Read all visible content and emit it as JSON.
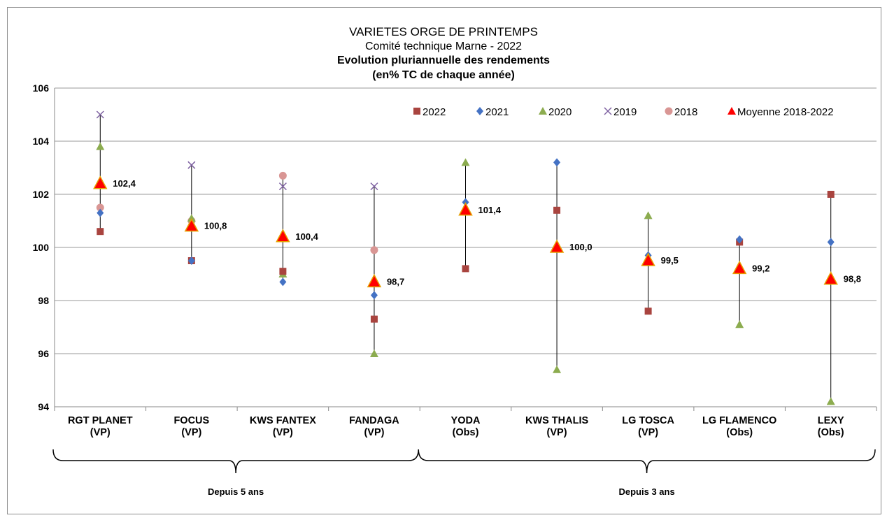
{
  "chart_data": {
    "type": "scatter",
    "title": "VARIETES ORGE DE PRINTEMPS",
    "subtitle": "Comité technique Marne - 2022",
    "title2": "Evolution pluriannuelle des rendements",
    "title3": "(en% TC de chaque année)",
    "xlabel": "",
    "ylabel": "",
    "ylim": [
      94,
      106
    ],
    "yticks": [
      "94",
      "96",
      "98",
      "100",
      "102",
      "104",
      "106"
    ],
    "grid": "horizontal",
    "legend_position": "top-right",
    "categories": [
      {
        "name": "RGT PLANET",
        "sub": "(VP)"
      },
      {
        "name": "FOCUS",
        "sub": "(VP)"
      },
      {
        "name": "KWS FANTEX",
        "sub": "(VP)"
      },
      {
        "name": "FANDAGA",
        "sub": "(VP)"
      },
      {
        "name": "YODA",
        "sub": "(Obs)"
      },
      {
        "name": "KWS THALIS",
        "sub": "(VP)"
      },
      {
        "name": "LG TOSCA",
        "sub": "(VP)"
      },
      {
        "name": "LG FLAMENCO",
        "sub": "(Obs)"
      },
      {
        "name": "LEXY",
        "sub": "(Obs)"
      }
    ],
    "series": [
      {
        "name": "2022",
        "marker": "square",
        "color": "#a9443f",
        "values": [
          100.6,
          99.5,
          99.1,
          97.3,
          99.2,
          101.4,
          97.6,
          100.2,
          102.0
        ]
      },
      {
        "name": "2021",
        "marker": "diamond",
        "color": "#4472c4",
        "values": [
          101.3,
          99.5,
          98.7,
          98.2,
          101.7,
          103.2,
          99.7,
          100.3,
          100.2
        ]
      },
      {
        "name": "2020",
        "marker": "triangle",
        "color": "#8cac4f",
        "values": [
          103.8,
          101.1,
          99.0,
          96.0,
          103.2,
          95.4,
          101.2,
          97.1,
          94.2
        ]
      },
      {
        "name": "2019",
        "marker": "x",
        "color": "#7f62a2",
        "values": [
          105.0,
          103.1,
          102.3,
          102.3,
          null,
          null,
          null,
          null,
          null
        ]
      },
      {
        "name": "2018",
        "marker": "circle",
        "color": "#d99694",
        "values": [
          101.5,
          101.0,
          102.7,
          99.9,
          null,
          null,
          null,
          null,
          null
        ]
      },
      {
        "name": "Moyenne 2018-2022",
        "marker": "big-triangle",
        "color": "#ff0000",
        "values": [
          102.4,
          100.8,
          100.4,
          98.7,
          101.4,
          100.0,
          99.5,
          99.2,
          98.8
        ]
      }
    ],
    "mean_labels": [
      "102,4",
      "100,8",
      "100,4",
      "98,7",
      "101,4",
      "100,0",
      "99,5",
      "99,2",
      "98,8"
    ],
    "groups": [
      {
        "label": "Depuis 5 ans",
        "from": 0,
        "to": 3
      },
      {
        "label": "Depuis 3 ans",
        "from": 4,
        "to": 8
      }
    ]
  }
}
